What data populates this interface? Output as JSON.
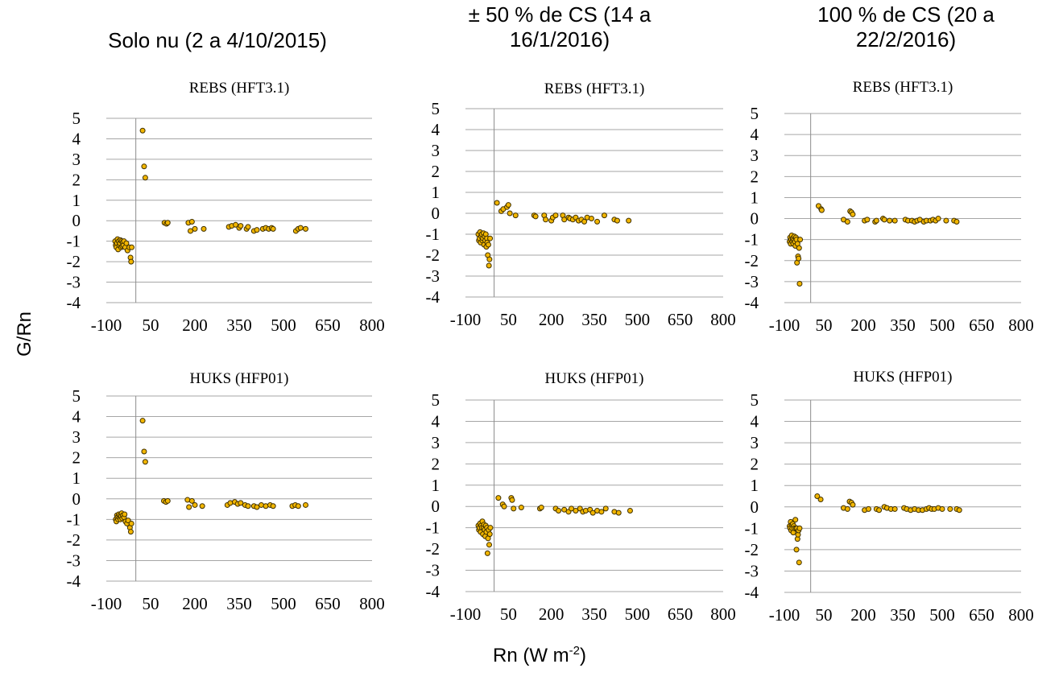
{
  "column_titles": [
    "Solo nu (2 a 4/10/2015)",
    "± 50 % de CS (14 a 16/1/2016)",
    "100 % de CS (20 a 22/2/2016)"
  ],
  "y_axis_label": "G/Rn",
  "x_axis_label_base": "Rn (W m",
  "x_axis_label_exp": "-2",
  "x_axis_label_tail": ")",
  "colors": {
    "marker_fill": "#f2b600",
    "marker_edge": "#3f3000",
    "grid": "#a6a6a6"
  },
  "chart_data": [
    {
      "type": "scatter",
      "title": "REBS (HFT3.1)",
      "xlim": [
        -100,
        800
      ],
      "ylim": [
        -4,
        5
      ],
      "xticks": [
        "-100",
        "50",
        "200",
        "350",
        "500",
        "650",
        "800"
      ],
      "yticks": [
        "5",
        "4",
        "3",
        "2",
        "1",
        "0",
        "-1",
        "-2",
        "-3",
        "-4"
      ],
      "points": [
        [
          -70,
          -1.0
        ],
        [
          -68,
          -1.2
        ],
        [
          -66,
          -1.3
        ],
        [
          -64,
          -1.1
        ],
        [
          -62,
          -0.9
        ],
        [
          -60,
          -1.4
        ],
        [
          -58,
          -1.0
        ],
        [
          -56,
          -1.2
        ],
        [
          -54,
          -1.1
        ],
        [
          -52,
          -0.95
        ],
        [
          -50,
          -1.3
        ],
        [
          -48,
          -1.0
        ],
        [
          -46,
          -1.25
        ],
        [
          -44,
          -1.05
        ],
        [
          -42,
          -1.2
        ],
        [
          -40,
          -1.0
        ],
        [
          -36,
          -1.3
        ],
        [
          -32,
          -1.1
        ],
        [
          -28,
          -1.45
        ],
        [
          -22,
          -1.3
        ],
        [
          -18,
          -1.8
        ],
        [
          -16,
          -2.0
        ],
        [
          -14,
          -1.3
        ],
        [
          23,
          4.4
        ],
        [
          28,
          2.65
        ],
        [
          32,
          2.1
        ],
        [
          97,
          -0.1
        ],
        [
          104,
          -0.15
        ],
        [
          108,
          -0.1
        ],
        [
          178,
          -0.1
        ],
        [
          185,
          -0.5
        ],
        [
          190,
          -0.05
        ],
        [
          200,
          -0.4
        ],
        [
          230,
          -0.4
        ],
        [
          315,
          -0.3
        ],
        [
          325,
          -0.25
        ],
        [
          338,
          -0.2
        ],
        [
          350,
          -0.35
        ],
        [
          355,
          -0.25
        ],
        [
          375,
          -0.4
        ],
        [
          380,
          -0.3
        ],
        [
          400,
          -0.5
        ],
        [
          410,
          -0.45
        ],
        [
          430,
          -0.4
        ],
        [
          440,
          -0.35
        ],
        [
          450,
          -0.4
        ],
        [
          460,
          -0.35
        ],
        [
          465,
          -0.4
        ],
        [
          542,
          -0.5
        ],
        [
          550,
          -0.4
        ],
        [
          558,
          -0.35
        ],
        [
          575,
          -0.4
        ]
      ]
    },
    {
      "type": "scatter",
      "title": "REBS (HFT3.1)",
      "xlim": [
        -100,
        800
      ],
      "ylim": [
        -4,
        5
      ],
      "xticks": [
        "-100",
        "50",
        "200",
        "350",
        "500",
        "650",
        "800"
      ],
      "yticks": [
        "5",
        "4",
        "3",
        "2",
        "1",
        "0",
        "-1",
        "-2",
        "-3",
        "-4"
      ],
      "points": [
        [
          -55,
          -1.0
        ],
        [
          -53,
          -1.3
        ],
        [
          -51,
          -1.2
        ],
        [
          -49,
          -0.9
        ],
        [
          -47,
          -1.4
        ],
        [
          -45,
          -1.1
        ],
        [
          -43,
          -1.0
        ],
        [
          -41,
          -1.3
        ],
        [
          -39,
          -1.2
        ],
        [
          -37,
          -0.95
        ],
        [
          -35,
          -1.5
        ],
        [
          -33,
          -1.1
        ],
        [
          -31,
          -1.3
        ],
        [
          -29,
          -1.0
        ],
        [
          -27,
          -1.6
        ],
        [
          -25,
          -1.2
        ],
        [
          -24,
          -1.4
        ],
        [
          -22,
          -2.0
        ],
        [
          -20,
          -1.5
        ],
        [
          -18,
          -2.5
        ],
        [
          -16,
          -2.2
        ],
        [
          -14,
          -1.2
        ],
        [
          10,
          0.5
        ],
        [
          25,
          0.1
        ],
        [
          32,
          0.2
        ],
        [
          45,
          0.3
        ],
        [
          50,
          0.4
        ],
        [
          55,
          0.0
        ],
        [
          75,
          -0.1
        ],
        [
          140,
          -0.1
        ],
        [
          145,
          -0.15
        ],
        [
          175,
          -0.1
        ],
        [
          180,
          -0.3
        ],
        [
          200,
          -0.35
        ],
        [
          205,
          -0.2
        ],
        [
          215,
          -0.1
        ],
        [
          240,
          -0.1
        ],
        [
          245,
          -0.3
        ],
        [
          260,
          -0.2
        ],
        [
          265,
          -0.25
        ],
        [
          275,
          -0.3
        ],
        [
          285,
          -0.2
        ],
        [
          295,
          -0.35
        ],
        [
          305,
          -0.3
        ],
        [
          315,
          -0.4
        ],
        [
          325,
          -0.2
        ],
        [
          340,
          -0.25
        ],
        [
          360,
          -0.4
        ],
        [
          385,
          -0.1
        ],
        [
          420,
          -0.3
        ],
        [
          430,
          -0.35
        ],
        [
          470,
          -0.35
        ]
      ]
    },
    {
      "type": "scatter",
      "title": "REBS (HFT3.1)",
      "xlim": [
        -100,
        800
      ],
      "ylim": [
        -4,
        5
      ],
      "xticks": [
        "-100",
        "50",
        "200",
        "350",
        "500",
        "650",
        "800"
      ],
      "yticks": [
        "5",
        "4",
        "3",
        "2",
        "1",
        "0",
        "-1",
        "-2",
        "-3",
        "-4"
      ],
      "points": [
        [
          -80,
          -1.1
        ],
        [
          -78,
          -0.9
        ],
        [
          -76,
          -1.2
        ],
        [
          -74,
          -1.0
        ],
        [
          -72,
          -0.8
        ],
        [
          -70,
          -1.1
        ],
        [
          -68,
          -0.95
        ],
        [
          -66,
          -1.2
        ],
        [
          -64,
          -1.0
        ],
        [
          -62,
          -0.85
        ],
        [
          -60,
          -1.1
        ],
        [
          -58,
          -1.3
        ],
        [
          -56,
          -0.9
        ],
        [
          -54,
          -1.0
        ],
        [
          -52,
          -2.1
        ],
        [
          -50,
          -1.2
        ],
        [
          -48,
          -1.8
        ],
        [
          -46,
          -1.9
        ],
        [
          -44,
          -1.4
        ],
        [
          -42,
          -3.1
        ],
        [
          -40,
          -1.0
        ],
        [
          30,
          0.6
        ],
        [
          40,
          0.45
        ],
        [
          42,
          0.4
        ],
        [
          125,
          -0.05
        ],
        [
          140,
          -0.15
        ],
        [
          150,
          0.35
        ],
        [
          155,
          0.3
        ],
        [
          160,
          0.2
        ],
        [
          205,
          -0.1
        ],
        [
          215,
          -0.05
        ],
        [
          245,
          -0.15
        ],
        [
          250,
          -0.1
        ],
        [
          275,
          0.0
        ],
        [
          280,
          -0.05
        ],
        [
          300,
          -0.1
        ],
        [
          320,
          -0.1
        ],
        [
          360,
          -0.05
        ],
        [
          370,
          -0.1
        ],
        [
          385,
          -0.1
        ],
        [
          395,
          -0.15
        ],
        [
          405,
          -0.1
        ],
        [
          415,
          -0.05
        ],
        [
          430,
          -0.15
        ],
        [
          440,
          -0.1
        ],
        [
          455,
          -0.1
        ],
        [
          465,
          -0.05
        ],
        [
          475,
          -0.1
        ],
        [
          485,
          0.0
        ],
        [
          515,
          -0.1
        ],
        [
          545,
          -0.1
        ],
        [
          555,
          -0.15
        ]
      ]
    },
    {
      "type": "scatter",
      "title": "HUKS (HFP01)",
      "xlim": [
        -100,
        800
      ],
      "ylim": [
        -4,
        5
      ],
      "xticks": [
        "-100",
        "50",
        "200",
        "350",
        "500",
        "650",
        "800"
      ],
      "yticks": [
        "5",
        "4",
        "3",
        "2",
        "1",
        "0",
        "-1",
        "-2",
        "-3",
        "-4"
      ],
      "points": [
        [
          -68,
          -1.0
        ],
        [
          -66,
          -1.1
        ],
        [
          -64,
          -0.8
        ],
        [
          -62,
          -0.9
        ],
        [
          -60,
          -1.0
        ],
        [
          -58,
          -0.75
        ],
        [
          -56,
          -0.9
        ],
        [
          -54,
          -0.8
        ],
        [
          -52,
          -1.0
        ],
        [
          -50,
          -0.85
        ],
        [
          -48,
          -0.7
        ],
        [
          -46,
          -0.95
        ],
        [
          -44,
          -0.8
        ],
        [
          -40,
          -0.9
        ],
        [
          -38,
          -0.75
        ],
        [
          -35,
          -1.1
        ],
        [
          -30,
          -1.2
        ],
        [
          -26,
          -1.05
        ],
        [
          -20,
          -1.4
        ],
        [
          -17,
          -1.6
        ],
        [
          -15,
          -1.2
        ],
        [
          23,
          3.8
        ],
        [
          28,
          2.3
        ],
        [
          32,
          1.8
        ],
        [
          95,
          -0.1
        ],
        [
          102,
          -0.15
        ],
        [
          108,
          -0.1
        ],
        [
          175,
          -0.05
        ],
        [
          180,
          -0.4
        ],
        [
          190,
          -0.1
        ],
        [
          200,
          -0.3
        ],
        [
          225,
          -0.35
        ],
        [
          310,
          -0.3
        ],
        [
          320,
          -0.2
        ],
        [
          335,
          -0.15
        ],
        [
          345,
          -0.25
        ],
        [
          355,
          -0.2
        ],
        [
          370,
          -0.3
        ],
        [
          380,
          -0.35
        ],
        [
          400,
          -0.35
        ],
        [
          410,
          -0.4
        ],
        [
          425,
          -0.3
        ],
        [
          440,
          -0.35
        ],
        [
          455,
          -0.3
        ],
        [
          465,
          -0.35
        ],
        [
          530,
          -0.35
        ],
        [
          540,
          -0.3
        ],
        [
          550,
          -0.35
        ],
        [
          575,
          -0.3
        ]
      ]
    },
    {
      "type": "scatter",
      "title": "HUKS (HFP01)",
      "xlim": [
        -100,
        800
      ],
      "ylim": [
        -4,
        5
      ],
      "xticks": [
        "-100",
        "50",
        "200",
        "350",
        "500",
        "650",
        "800"
      ],
      "yticks": [
        "5",
        "4",
        "3",
        "2",
        "1",
        "0",
        "-1",
        "-2",
        "-3",
        "-4"
      ],
      "points": [
        [
          -55,
          -0.9
        ],
        [
          -53,
          -1.1
        ],
        [
          -51,
          -1.0
        ],
        [
          -49,
          -0.8
        ],
        [
          -47,
          -1.2
        ],
        [
          -45,
          -0.9
        ],
        [
          -43,
          -1.0
        ],
        [
          -41,
          -0.7
        ],
        [
          -39,
          -1.3
        ],
        [
          -37,
          -1.0
        ],
        [
          -35,
          -0.85
        ],
        [
          -33,
          -1.1
        ],
        [
          -31,
          -1.4
        ],
        [
          -29,
          -0.9
        ],
        [
          -27,
          -1.2
        ],
        [
          -25,
          -1.0
        ],
        [
          -23,
          -2.2
        ],
        [
          -21,
          -1.5
        ],
        [
          -19,
          -1.1
        ],
        [
          -17,
          -1.8
        ],
        [
          -15,
          -1.3
        ],
        [
          -13,
          -1.0
        ],
        [
          15,
          0.4
        ],
        [
          30,
          0.1
        ],
        [
          35,
          0.0
        ],
        [
          60,
          0.4
        ],
        [
          63,
          0.3
        ],
        [
          68,
          -0.1
        ],
        [
          95,
          -0.05
        ],
        [
          160,
          -0.1
        ],
        [
          165,
          -0.05
        ],
        [
          215,
          -0.1
        ],
        [
          225,
          -0.2
        ],
        [
          245,
          -0.15
        ],
        [
          260,
          -0.25
        ],
        [
          270,
          -0.1
        ],
        [
          285,
          -0.2
        ],
        [
          300,
          -0.1
        ],
        [
          310,
          -0.25
        ],
        [
          320,
          -0.2
        ],
        [
          335,
          -0.15
        ],
        [
          345,
          -0.3
        ],
        [
          360,
          -0.2
        ],
        [
          375,
          -0.25
        ],
        [
          390,
          -0.1
        ],
        [
          420,
          -0.25
        ],
        [
          435,
          -0.3
        ],
        [
          475,
          -0.2
        ]
      ]
    },
    {
      "type": "scatter",
      "title": "HUKS (HFP01)",
      "xlim": [
        -100,
        800
      ],
      "ylim": [
        -4,
        5
      ],
      "xticks": [
        "-100",
        "50",
        "200",
        "350",
        "500",
        "650",
        "800"
      ],
      "yticks": [
        "5",
        "4",
        "3",
        "2",
        "1",
        "0",
        "-1",
        "-2",
        "-3",
        "-4"
      ],
      "points": [
        [
          -80,
          -0.9
        ],
        [
          -78,
          -1.0
        ],
        [
          -76,
          -0.7
        ],
        [
          -74,
          -1.1
        ],
        [
          -72,
          -0.85
        ],
        [
          -70,
          -1.0
        ],
        [
          -68,
          -0.8
        ],
        [
          -66,
          -1.2
        ],
        [
          -64,
          -0.9
        ],
        [
          -62,
          -1.0
        ],
        [
          -58,
          -0.6
        ],
        [
          -56,
          -1.0
        ],
        [
          -54,
          -2.0
        ],
        [
          -52,
          -1.0
        ],
        [
          -50,
          -1.5
        ],
        [
          -48,
          -1.3
        ],
        [
          -46,
          -1.1
        ],
        [
          -44,
          -2.6
        ],
        [
          -42,
          -1.0
        ],
        [
          25,
          0.5
        ],
        [
          38,
          0.35
        ],
        [
          125,
          -0.05
        ],
        [
          140,
          -0.1
        ],
        [
          148,
          0.25
        ],
        [
          155,
          0.2
        ],
        [
          160,
          0.1
        ],
        [
          205,
          -0.15
        ],
        [
          220,
          -0.1
        ],
        [
          250,
          -0.1
        ],
        [
          260,
          -0.15
        ],
        [
          280,
          0.0
        ],
        [
          290,
          -0.05
        ],
        [
          305,
          -0.1
        ],
        [
          320,
          -0.1
        ],
        [
          355,
          -0.05
        ],
        [
          365,
          -0.1
        ],
        [
          380,
          -0.15
        ],
        [
          395,
          -0.1
        ],
        [
          410,
          -0.15
        ],
        [
          425,
          -0.15
        ],
        [
          440,
          -0.1
        ],
        [
          450,
          -0.05
        ],
        [
          460,
          -0.1
        ],
        [
          470,
          -0.1
        ],
        [
          485,
          -0.05
        ],
        [
          500,
          -0.1
        ],
        [
          530,
          -0.1
        ],
        [
          555,
          -0.1
        ],
        [
          565,
          -0.15
        ]
      ]
    }
  ]
}
